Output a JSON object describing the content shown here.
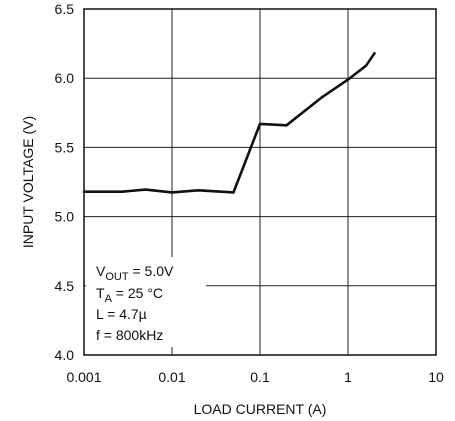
{
  "chart_data": {
    "type": "line",
    "xlabel": "LOAD CURRENT (A)",
    "ylabel": "INPUT VOLTAGE (V)",
    "xscale": "log",
    "xlim": [
      0.001,
      10
    ],
    "ylim": [
      4.0,
      6.5
    ],
    "grid": true,
    "x_ticks": [
      0.001,
      0.01,
      0.1,
      1,
      10
    ],
    "x_tick_labels": [
      "0.001",
      "0.01",
      "0.1",
      "1",
      "10"
    ],
    "y_ticks": [
      4.0,
      4.5,
      5.0,
      5.5,
      6.0,
      6.5
    ],
    "y_tick_labels": [
      "4.0",
      "4.5",
      "5.0",
      "5.5",
      "6.0",
      "6.5"
    ],
    "series": [
      {
        "x": [
          0.001,
          0.0027,
          0.005,
          0.01,
          0.02,
          0.05,
          0.1,
          0.2,
          0.5,
          1,
          1.6,
          2.0
        ],
        "y": [
          5.18,
          5.18,
          5.195,
          5.175,
          5.19,
          5.175,
          5.67,
          5.66,
          5.86,
          5.99,
          6.09,
          6.18
        ]
      }
    ],
    "annotations": [
      {
        "main": "V",
        "sub": "OUT",
        "rest": " = 5.0V"
      },
      {
        "main": "T",
        "sub": "A",
        "rest": " = 25 °C"
      },
      {
        "main": "L = 4.7µ",
        "sub": "",
        "rest": ""
      },
      {
        "main": "f = 800kHz",
        "sub": "",
        "rest": ""
      }
    ]
  }
}
